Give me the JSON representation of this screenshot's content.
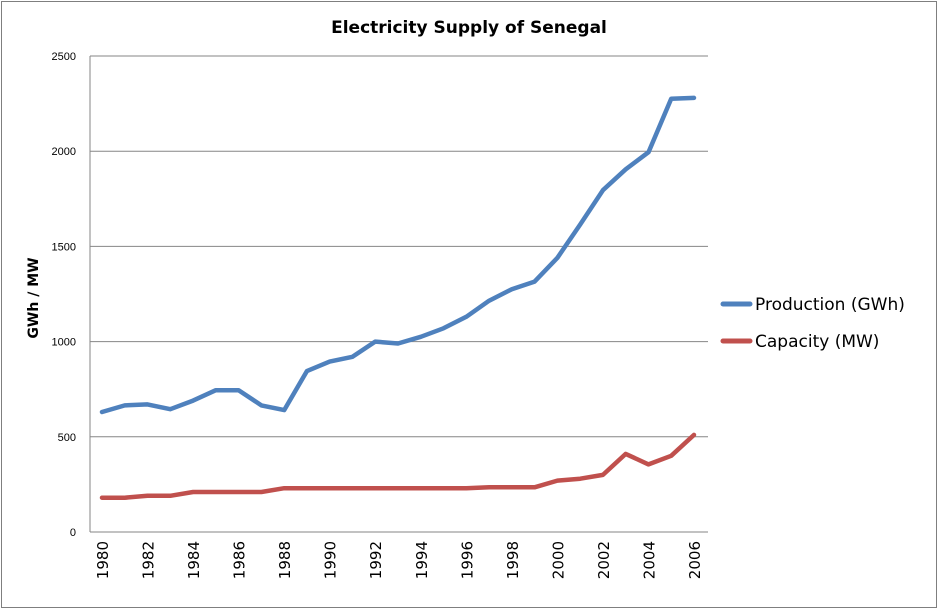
{
  "chart_data": {
    "type": "line",
    "title": "Electricity Supply of Senegal",
    "xlabel": "",
    "ylabel": "GWh  / MW",
    "ylim": [
      0,
      2500
    ],
    "yticks": [
      0,
      500,
      1000,
      1500,
      2000,
      2500
    ],
    "x": [
      1980,
      1981,
      1982,
      1983,
      1984,
      1985,
      1986,
      1987,
      1988,
      1989,
      1990,
      1991,
      1992,
      1993,
      1994,
      1995,
      1996,
      1997,
      1998,
      1999,
      2000,
      2001,
      2002,
      2003,
      2004,
      2005,
      2006
    ],
    "xtick_labels": [
      "1980",
      "1982",
      "1984",
      "1986",
      "1988",
      "1990",
      "1992",
      "1994",
      "1996",
      "1998",
      "2000",
      "2002",
      "2004",
      "2006"
    ],
    "grid": true,
    "legend_position": "right",
    "series": [
      {
        "name": "Production (GWh)",
        "color": "#4f81bd",
        "values": [
          630,
          665,
          670,
          645,
          690,
          745,
          745,
          665,
          640,
          845,
          895,
          920,
          1000,
          990,
          1025,
          1070,
          1130,
          1215,
          1275,
          1315,
          1440,
          1615,
          1795,
          1905,
          1995,
          2275,
          2280
        ]
      },
      {
        "name": "Capacity (MW)",
        "color": "#c0504d",
        "values": [
          180,
          180,
          190,
          190,
          210,
          210,
          210,
          210,
          230,
          230,
          230,
          230,
          230,
          230,
          230,
          230,
          230,
          235,
          235,
          235,
          270,
          280,
          300,
          410,
          355,
          400,
          510
        ]
      }
    ]
  }
}
